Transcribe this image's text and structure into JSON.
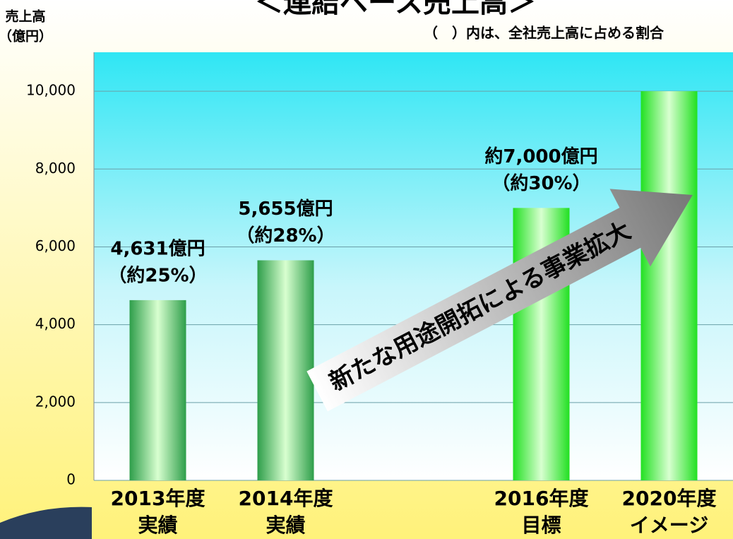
{
  "chart_data": {
    "type": "bar",
    "title": "＜連結ベース売上高＞",
    "subtitle": "（　）内は、全社売上高に占める割合",
    "y_label": [
      "売上高",
      "（億円）"
    ],
    "categories": [
      [
        "2013年度",
        "実績"
      ],
      [
        "2014年度",
        "実績"
      ],
      null,
      [
        "2016年度",
        "目標"
      ],
      [
        "2020年度",
        "イメージ"
      ]
    ],
    "values": [
      4631,
      5655,
      null,
      7000,
      10000
    ],
    "value_labels": [
      [
        "4,631億円",
        "（約25%）"
      ],
      [
        "5,655億円",
        "（約28%）"
      ],
      null,
      [
        "約7,000億円",
        "（約30%）"
      ],
      null
    ],
    "colors": [
      "#2e9e4a",
      "#2e9e4a",
      null,
      "#22e022",
      "#22e022"
    ],
    "ylim": [
      0,
      11000
    ],
    "yticks": [
      0,
      {
        "value": 2000,
        "label": "2,000"
      },
      {
        "value": 4000,
        "label": "4,000"
      },
      {
        "value": 6000,
        "label": "6,000"
      },
      {
        "value": 8000,
        "label": "8,000"
      },
      {
        "value": 10000,
        "label": "10,000"
      }
    ],
    "grid": true,
    "annotation": "新たな用途開拓による事業拡大"
  }
}
